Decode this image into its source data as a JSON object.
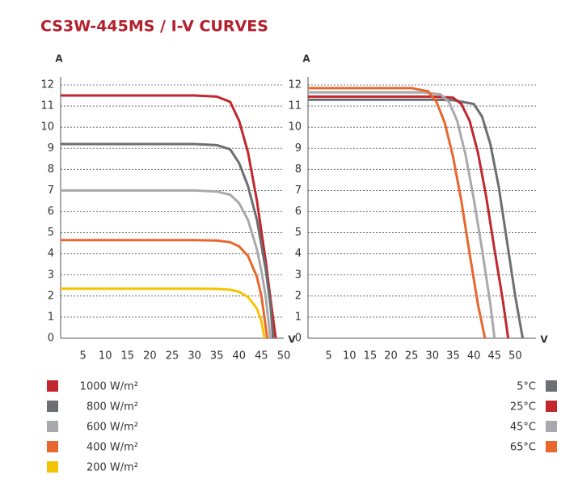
{
  "title": "CS3W-445MS / I-V CURVES",
  "chart_data": [
    {
      "type": "line",
      "x_label": "V",
      "y_label": "A",
      "xlim": [
        0,
        50
      ],
      "xticks": [
        5,
        10,
        15,
        20,
        25,
        30,
        35,
        40,
        45,
        50
      ],
      "ylim": [
        0,
        12
      ],
      "yticks": [
        0,
        1,
        2,
        3,
        4,
        5,
        6,
        7,
        8,
        9,
        10,
        11,
        12
      ],
      "grid": true,
      "legend": "bottom-left",
      "series": [
        {
          "name": "1000 W/m²",
          "color": "#c1272d",
          "x": [
            0,
            30,
            35,
            38,
            40,
            42,
            44,
            46,
            47,
            48.2
          ],
          "values": [
            11.5,
            11.5,
            11.45,
            11.2,
            10.3,
            8.8,
            6.5,
            3.6,
            1.9,
            0
          ]
        },
        {
          "name": "800 W/m²",
          "color": "#6d6e71",
          "x": [
            0,
            30,
            35,
            38,
            40,
            42,
            44,
            46,
            47,
            47.6
          ],
          "values": [
            9.2,
            9.2,
            9.15,
            8.95,
            8.3,
            7.2,
            5.6,
            3.2,
            1.6,
            0
          ]
        },
        {
          "name": "600 W/m²",
          "color": "#a7a9ac",
          "x": [
            0,
            30,
            35,
            38,
            40,
            42,
            44,
            45,
            46,
            47
          ],
          "values": [
            7.0,
            7.0,
            6.95,
            6.8,
            6.4,
            5.6,
            4.2,
            3.2,
            1.9,
            0
          ]
        },
        {
          "name": "400 W/m²",
          "color": "#e8672e",
          "x": [
            0,
            30,
            35,
            38,
            40,
            42,
            44,
            45,
            46.3
          ],
          "values": [
            4.65,
            4.65,
            4.63,
            4.55,
            4.35,
            3.9,
            2.9,
            2.0,
            0
          ]
        },
        {
          "name": "200 W/m²",
          "color": "#f5c400",
          "x": [
            0,
            30,
            35,
            38,
            40,
            42,
            44,
            45,
            45.7
          ],
          "values": [
            2.35,
            2.35,
            2.34,
            2.3,
            2.2,
            1.95,
            1.4,
            0.8,
            0
          ]
        }
      ]
    },
    {
      "type": "line",
      "x_label": "V",
      "y_label": "A",
      "xlim": [
        0,
        55
      ],
      "xticks": [
        5,
        10,
        15,
        20,
        25,
        30,
        35,
        40,
        45,
        50
      ],
      "ylim": [
        0,
        12
      ],
      "yticks": [
        0,
        1,
        2,
        3,
        4,
        5,
        6,
        7,
        8,
        9,
        10,
        11,
        12
      ],
      "grid": true,
      "legend": "bottom-right",
      "series": [
        {
          "name": "5°C",
          "color": "#6d6e71",
          "x": [
            0,
            30,
            35,
            40,
            42,
            44,
            46,
            48,
            50,
            51.8
          ],
          "values": [
            11.3,
            11.3,
            11.28,
            11.1,
            10.5,
            9.2,
            7.2,
            4.6,
            2.0,
            0
          ]
        },
        {
          "name": "25°C",
          "color": "#c1272d",
          "x": [
            0,
            30,
            35,
            37,
            39,
            41,
            43,
            45,
            47,
            48.3
          ],
          "values": [
            11.45,
            11.45,
            11.4,
            11.1,
            10.3,
            8.8,
            6.7,
            4.2,
            1.8,
            0
          ]
        },
        {
          "name": "45°C",
          "color": "#a7a9ac",
          "x": [
            0,
            28,
            32,
            34,
            36,
            38,
            40,
            42,
            44,
            45
          ],
          "values": [
            11.65,
            11.65,
            11.55,
            11.2,
            10.3,
            8.7,
            6.6,
            4.2,
            1.6,
            0
          ]
        },
        {
          "name": "65°C",
          "color": "#e8672e",
          "x": [
            0,
            25,
            29,
            31,
            33,
            35,
            37,
            39,
            41,
            42.7
          ],
          "values": [
            11.85,
            11.85,
            11.7,
            11.2,
            10.2,
            8.6,
            6.5,
            4.0,
            1.6,
            0
          ]
        }
      ]
    }
  ]
}
